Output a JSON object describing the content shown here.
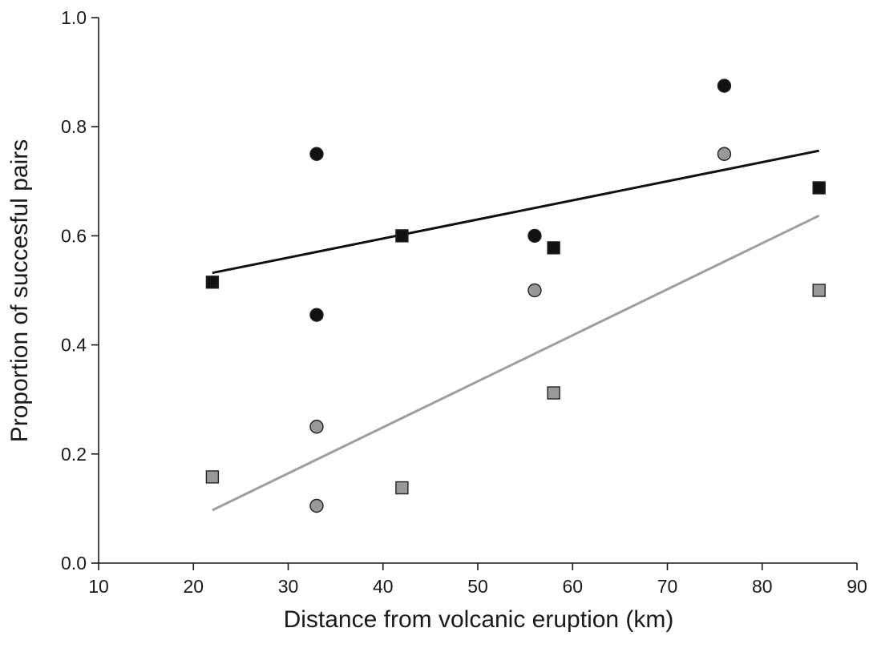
{
  "chart_data": {
    "type": "scatter",
    "title": "",
    "xlabel": "Distance from volcanic eruption (km)",
    "ylabel": "Proportion of succesful pairs",
    "xlim": [
      10,
      90
    ],
    "ylim": [
      0.0,
      1.0
    ],
    "x_ticks": [
      "10",
      "20",
      "30",
      "40",
      "50",
      "60",
      "70",
      "80",
      "90"
    ],
    "y_ticks": [
      "0.0",
      "0.2",
      "0.4",
      "0.6",
      "0.8",
      "1.0"
    ],
    "grid": false,
    "legend": "none",
    "colors": {
      "black": "#111111",
      "grey": "#999999",
      "grey_line": "#9e9e9e",
      "outline": "#222222"
    },
    "series": [
      {
        "marker": "circle",
        "fill": "black",
        "points": [
          [
            33,
            0.75
          ],
          [
            33,
            0.455
          ],
          [
            56,
            0.6
          ],
          [
            76,
            0.875
          ]
        ]
      },
      {
        "marker": "square",
        "fill": "black",
        "points": [
          [
            22,
            0.515
          ],
          [
            42,
            0.6
          ],
          [
            58,
            0.578
          ],
          [
            86,
            0.688
          ]
        ]
      },
      {
        "marker": "circle",
        "fill": "grey",
        "points": [
          [
            33,
            0.25
          ],
          [
            33,
            0.105
          ],
          [
            56,
            0.5
          ],
          [
            76,
            0.75
          ]
        ]
      },
      {
        "marker": "square",
        "fill": "grey",
        "points": [
          [
            22,
            0.158
          ],
          [
            42,
            0.138
          ],
          [
            58,
            0.312
          ],
          [
            86,
            0.5
          ]
        ]
      }
    ],
    "trend_lines": [
      {
        "color": "black",
        "from": [
          22,
          0.532
        ],
        "to": [
          86,
          0.756
        ]
      },
      {
        "color": "grey",
        "from": [
          22,
          0.097
        ],
        "to": [
          86,
          0.637
        ]
      }
    ]
  }
}
